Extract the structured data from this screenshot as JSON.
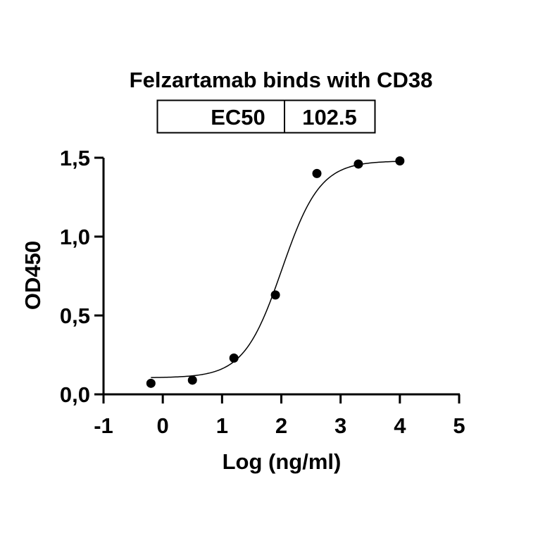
{
  "chart_data": {
    "type": "scatter",
    "title": "Felzartamab binds with CD38",
    "xlabel": "Log (ng/ml)",
    "ylabel": "OD450",
    "xlim": [
      -1,
      5
    ],
    "ylim": [
      0,
      1.5
    ],
    "x_ticks": [
      -1,
      0,
      1,
      2,
      3,
      4,
      5
    ],
    "x_tick_labels": [
      "-1",
      "0",
      "1",
      "2",
      "3",
      "4",
      "5"
    ],
    "y_ticks": [
      0,
      0.5,
      1.0,
      1.5
    ],
    "y_tick_labels": [
      "0,0",
      "0,5",
      "1,0",
      "1,5"
    ],
    "grid": false,
    "legend": "none",
    "series": [
      {
        "x": [
          -0.2,
          0.5,
          1.2,
          1.9,
          2.6,
          3.3,
          4.0
        ],
        "y": [
          0.07,
          0.09,
          0.23,
          0.63,
          1.4,
          1.46,
          1.48
        ]
      }
    ],
    "fit_curve": {
      "bottom": 0.105,
      "top": 1.48,
      "logEC50": 2.01,
      "hill": 1.35,
      "x_range": [
        -0.2,
        4.0
      ]
    },
    "results_table": {
      "label": "EC50",
      "value": "102.5"
    },
    "colors": {
      "points": "#000000",
      "curve": "#000000",
      "axis": "#000000"
    }
  }
}
